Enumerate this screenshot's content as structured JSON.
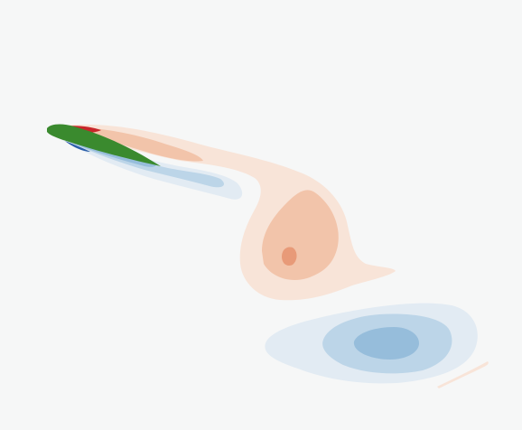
{
  "figure": {
    "background_color": "#f6f7f7",
    "airfoil_color": "#3a8a2e",
    "positive_vorticity_colors": [
      "#f8e4d8",
      "#f2c4aa",
      "#e89a78",
      "#c8262a"
    ],
    "negative_vorticity_colors": [
      "#e2ebf3",
      "#bcd5e8",
      "#96bddb",
      "#2a5ea8"
    ]
  }
}
